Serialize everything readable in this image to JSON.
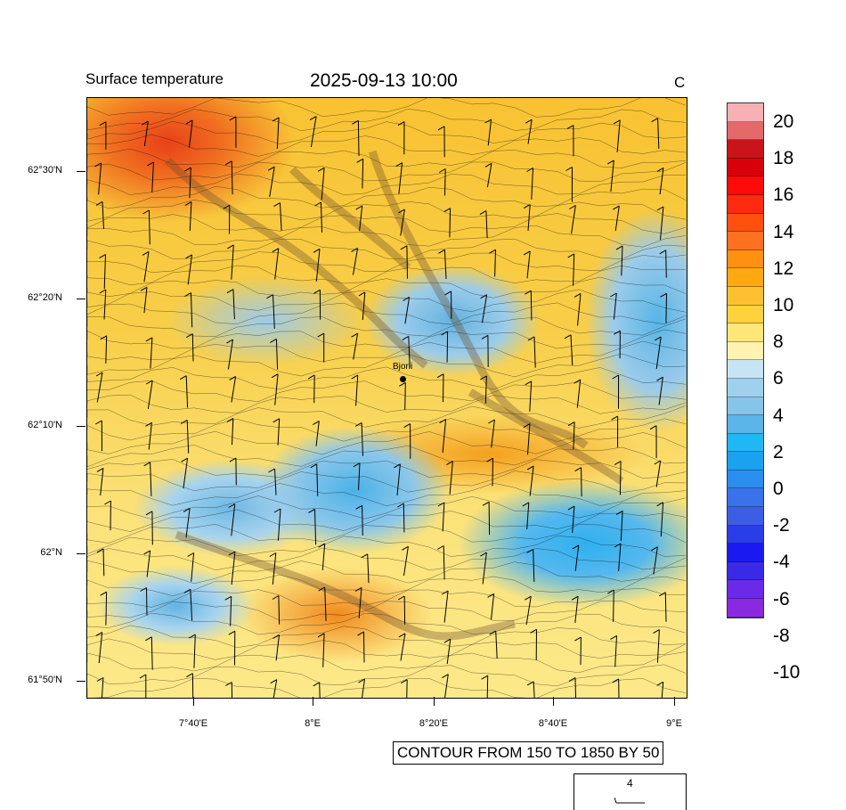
{
  "header": {
    "left_title": "Surface temperature",
    "center_title": "2025-09-13 10:00",
    "unit": "C"
  },
  "map": {
    "lat_labels": [
      "62°30'N",
      "62°20'N",
      "62°10'N",
      "62°N",
      "61°50'N"
    ],
    "lon_labels": [
      "7°40'E",
      "8°E",
      "8°20'E",
      "8°40'E",
      "9°E"
    ],
    "station": "Bjorli"
  },
  "colorbar": {
    "labels": [
      "20",
      "18",
      "16",
      "14",
      "12",
      "10",
      "8",
      "6",
      "4",
      "2",
      "0",
      "-2",
      "-4",
      "-6",
      "-8",
      "-10"
    ],
    "colors": [
      "#f7b0b4",
      "#e46a6a",
      "#c8141a",
      "#d8000a",
      "#ff0a0a",
      "#ff2a10",
      "#ff5010",
      "#ff7020",
      "#ff9010",
      "#ffa810",
      "#fcc030",
      "#fdd23c",
      "#fee678",
      "#fef3b0",
      "#c6e4f4",
      "#9fd1ee",
      "#86c4ea",
      "#5ab4e8",
      "#20b8f4",
      "#1aa2f0",
      "#2a8ef0",
      "#3a72ea",
      "#3d5ee4",
      "#2a3ee8",
      "#1a1af0",
      "#3a2ae8",
      "#6a2ae8",
      "#8a2ae0"
    ]
  },
  "footer": {
    "contour_note": "CONTOUR FROM 150 TO 1850 BY 50",
    "reference_vector": "4"
  }
}
